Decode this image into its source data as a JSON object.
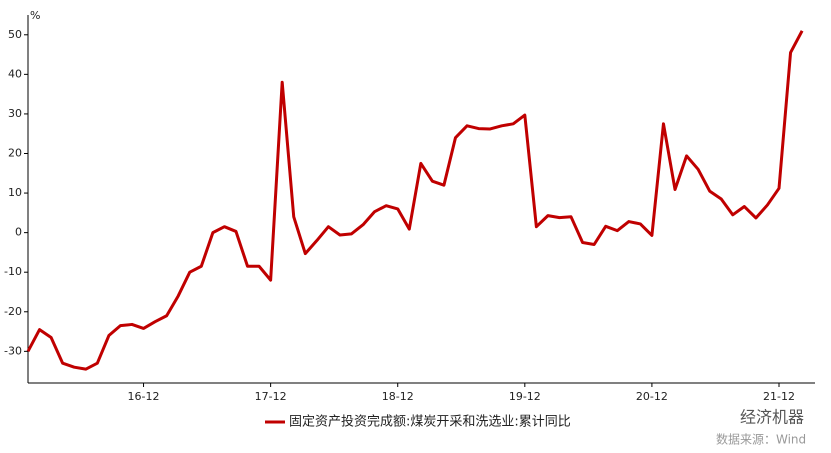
{
  "chart_data": {
    "type": "line",
    "y_unit": "%",
    "categories": [
      null,
      null,
      null,
      null,
      null,
      null,
      null,
      null,
      null,
      null,
      "16-12",
      null,
      null,
      null,
      null,
      null,
      null,
      null,
      null,
      null,
      null,
      "17-12",
      null,
      null,
      null,
      null,
      null,
      null,
      null,
      null,
      null,
      null,
      "18-12",
      null,
      null,
      null,
      null,
      null,
      null,
      null,
      null,
      null,
      null,
      "19-12",
      null,
      null,
      null,
      null,
      null,
      null,
      null,
      null,
      null,
      null,
      "20-12",
      null,
      null,
      null,
      null,
      null,
      null,
      null,
      null,
      null,
      null,
      "21-12",
      null,
      null
    ],
    "series": [
      {
        "name": "固定资产投资完成额:煤炭开采和洗选业:累计同比",
        "color": "#c00000",
        "values": [
          -30,
          -24.5,
          -26.5,
          -33,
          -34,
          -34.5,
          -33,
          -26,
          -23.5,
          -23.2,
          -24.2,
          -22.5,
          -21,
          -16,
          -10,
          -8.5,
          0,
          1.5,
          0.3,
          -8.5,
          -8.5,
          -12,
          38,
          4,
          -5.3,
          -2,
          1.5,
          -0.6,
          -0.3,
          2,
          5.3,
          6.8,
          6,
          0.9,
          17.5,
          13,
          12,
          24,
          27,
          26.3,
          26.2,
          27,
          27.5,
          29.7,
          1.5,
          4.3,
          3.8,
          4,
          -2.5,
          -3,
          1.6,
          0.5,
          2.8,
          2.2,
          -0.7,
          27.5,
          10.9,
          19.4,
          16,
          10.5,
          8.5,
          4.5,
          6.6,
          3.7,
          7,
          11.2,
          45.5,
          51
        ]
      }
    ],
    "ylim": [
      -38,
      55
    ],
    "yticks": [
      -30,
      -20,
      -10,
      0,
      10,
      20,
      30,
      40,
      50
    ],
    "grid": false,
    "legend": "bottom",
    "watermark": "经济机器",
    "source": "数据来源：Wind"
  }
}
